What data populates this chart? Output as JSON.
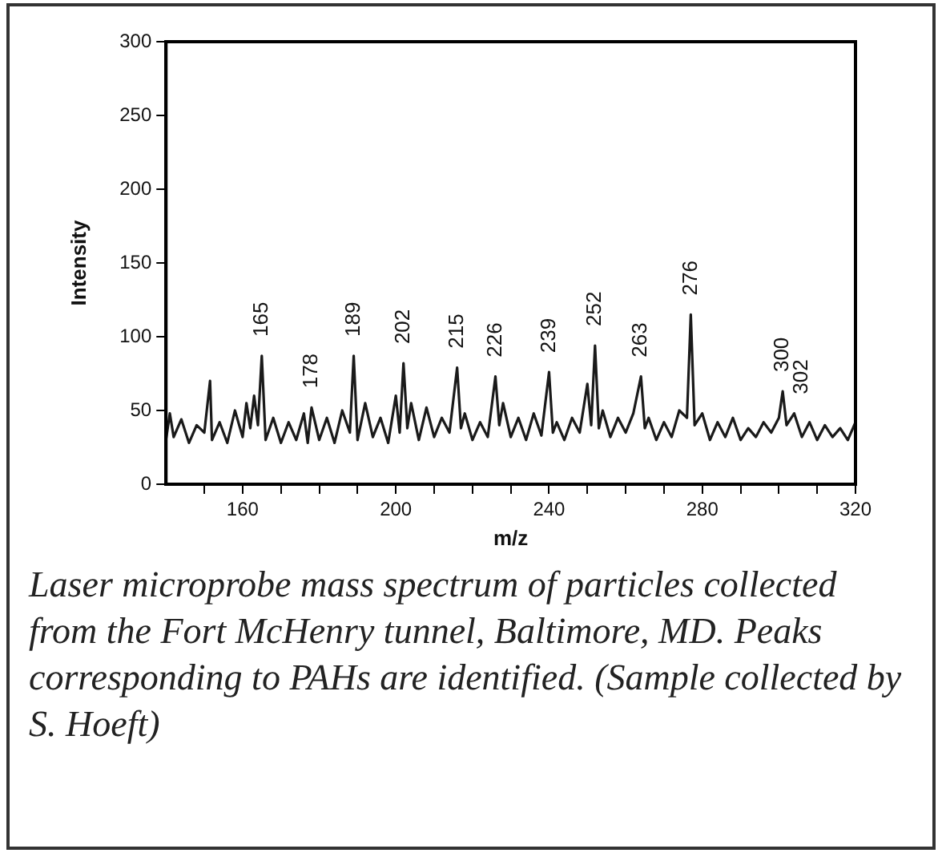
{
  "chart_data": {
    "type": "line",
    "xlabel": "m/z",
    "ylabel": "Intensity",
    "x": [
      140,
      141,
      142,
      144,
      146,
      148,
      150,
      151.5,
      152,
      154,
      156,
      158,
      160,
      161,
      162,
      163,
      164,
      165,
      166,
      168,
      170,
      172,
      174,
      176,
      177,
      178,
      180,
      182,
      184,
      186,
      188,
      189,
      190,
      192,
      194,
      196,
      198,
      200,
      201,
      202,
      203,
      204,
      206,
      208,
      210,
      212,
      214,
      216,
      217,
      218,
      220,
      222,
      224,
      226,
      227,
      228,
      230,
      232,
      234,
      236,
      238,
      240,
      241,
      242,
      244,
      246,
      248,
      250,
      251,
      252,
      253,
      254,
      256,
      258,
      260,
      262,
      264,
      265,
      266,
      268,
      270,
      272,
      274,
      276,
      277,
      278,
      280,
      282,
      284,
      286,
      288,
      290,
      292,
      294,
      296,
      298,
      300,
      301,
      302,
      304,
      306,
      308,
      310,
      312,
      314,
      316,
      318,
      320
    ],
    "series": [
      {
        "color": "#1a1a1a",
        "values": [
          30,
          48,
          32,
          44,
          28,
          40,
          35,
          70,
          30,
          42,
          28,
          50,
          32,
          55,
          38,
          60,
          40,
          87,
          30,
          45,
          28,
          42,
          30,
          48,
          28,
          52,
          30,
          45,
          28,
          50,
          35,
          87,
          30,
          55,
          32,
          45,
          28,
          60,
          35,
          82,
          38,
          55,
          30,
          52,
          32,
          45,
          35,
          79,
          38,
          48,
          30,
          42,
          32,
          73,
          40,
          55,
          32,
          45,
          30,
          48,
          33,
          76,
          35,
          42,
          30,
          45,
          35,
          68,
          40,
          94,
          38,
          50,
          32,
          45,
          35,
          48,
          73,
          38,
          45,
          30,
          42,
          32,
          50,
          45,
          115,
          40,
          48,
          30,
          42,
          32,
          45,
          30,
          38,
          32,
          42,
          35,
          45,
          63,
          40,
          48,
          32,
          42,
          30,
          40,
          32,
          38,
          30,
          42
        ]
      }
    ],
    "xlim": [
      140,
      320
    ],
    "xticks": [
      {
        "value": 150,
        "label": null
      },
      160,
      {
        "value": 170,
        "label": null
      },
      {
        "value": 180,
        "label": null
      },
      {
        "value": 190,
        "label": null
      },
      200,
      {
        "value": 210,
        "label": null
      },
      {
        "value": 220,
        "label": null
      },
      {
        "value": 230,
        "label": null
      },
      240,
      {
        "value": 250,
        "label": null
      },
      {
        "value": 260,
        "label": null
      },
      {
        "value": 270,
        "label": null
      },
      280,
      {
        "value": 290,
        "label": null
      },
      {
        "value": 300,
        "label": null
      },
      {
        "value": 310,
        "label": null
      },
      320
    ],
    "ylim": [
      0,
      300
    ],
    "yticks": [
      0,
      50,
      100,
      150,
      200,
      250,
      300
    ],
    "grid": false,
    "legend": false,
    "marker": "none",
    "line_style": "solid",
    "annotations": [
      {
        "text": "165",
        "x": 165,
        "y": 87
      },
      {
        "text": "178",
        "x": 178,
        "y": 52
      },
      {
        "text": "189",
        "x": 189,
        "y": 87
      },
      {
        "text": "202",
        "x": 202,
        "y": 82
      },
      {
        "text": "215",
        "x": 216,
        "y": 79
      },
      {
        "text": "226",
        "x": 226,
        "y": 73
      },
      {
        "text": "239",
        "x": 240,
        "y": 76
      },
      {
        "text": "252",
        "x": 252,
        "y": 94
      },
      {
        "text": "263",
        "x": 264,
        "y": 73
      },
      {
        "text": "276",
        "x": 277,
        "y": 115
      },
      {
        "text": "300",
        "x": 301,
        "y": 63
      },
      {
        "text": "302",
        "x": 306,
        "y": 48
      },
      "Laser microprobe mass spectrum of particles collected from the Fort McHenry tunnel, Baltimore, MD. Peaks corresponding to PAHs are identified. (Sample collected by S. Hoeft)"
    ]
  }
}
